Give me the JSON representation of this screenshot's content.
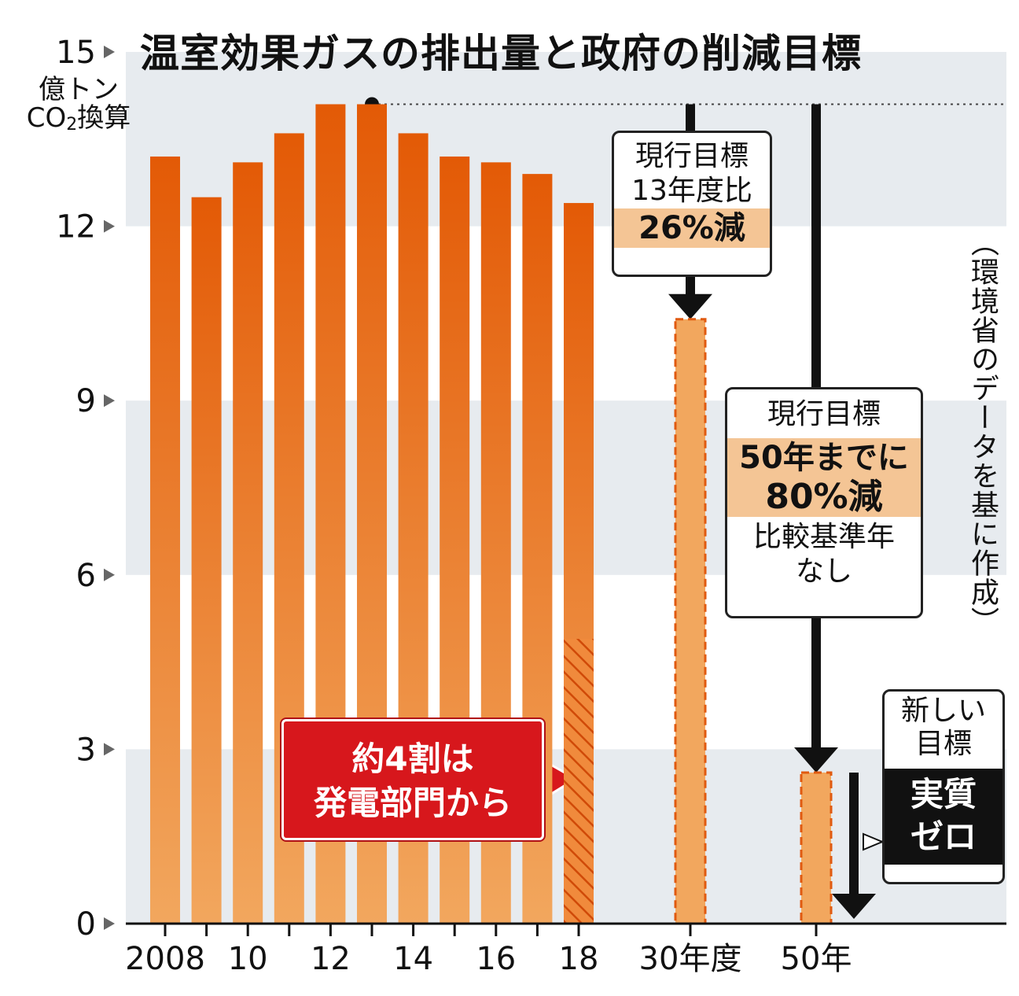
{
  "chart_data": {
    "type": "bar",
    "title": "温室効果ガスの排出量と政府の削減目標",
    "ylabel": "億トン CO2換算",
    "ylim": [
      0,
      15
    ],
    "yticks": [
      0,
      3,
      6,
      9,
      12,
      15
    ],
    "x_tick_labels": [
      "2008",
      "10",
      "12",
      "14",
      "16",
      "18",
      "30年度",
      "50年"
    ],
    "series": [
      {
        "name": "",
        "categories": [
          "2008",
          "2009",
          "2010",
          "2011",
          "2012",
          "2013",
          "2014",
          "2015",
          "2016",
          "2017",
          "2018"
        ],
        "values": [
          13.2,
          12.5,
          13.1,
          13.6,
          14.1,
          14.1,
          13.6,
          13.2,
          13.1,
          12.9,
          12.4
        ]
      }
    ],
    "targets": [
      {
        "label": "30年度",
        "value": 10.4
      },
      {
        "label": "50年",
        "value": 2.6
      }
    ],
    "hatched_portion": {
      "category": "2018",
      "value": 4.9
    },
    "reference_line": {
      "value": 14.1,
      "style": "dotted"
    },
    "annotations": {
      "box_2030": {
        "line1": "現行目標",
        "line2": "13年度比",
        "highlight": "26%減"
      },
      "box_2050": {
        "line1": "現行目標",
        "highlight1": "50年までに",
        "highlight2": "80%減",
        "line2": "比較基準年",
        "line3": "なし"
      },
      "box_new": {
        "line1": "新しい",
        "line2": "目標",
        "dark1": "実質",
        "dark2": "ゼロ"
      },
      "callout": {
        "line1": "約4割は",
        "line2": "発電部門から"
      }
    },
    "source": "（環境省のデータを基に作成）",
    "colors": {
      "bar_top": "#e35a06",
      "bar_bottom": "#f2a75e",
      "target_fill": "#f2a75e",
      "target_border": "#e05a10",
      "band": "#e7ebef",
      "callout": "#d7171c",
      "highlight": "#f4c595"
    }
  }
}
